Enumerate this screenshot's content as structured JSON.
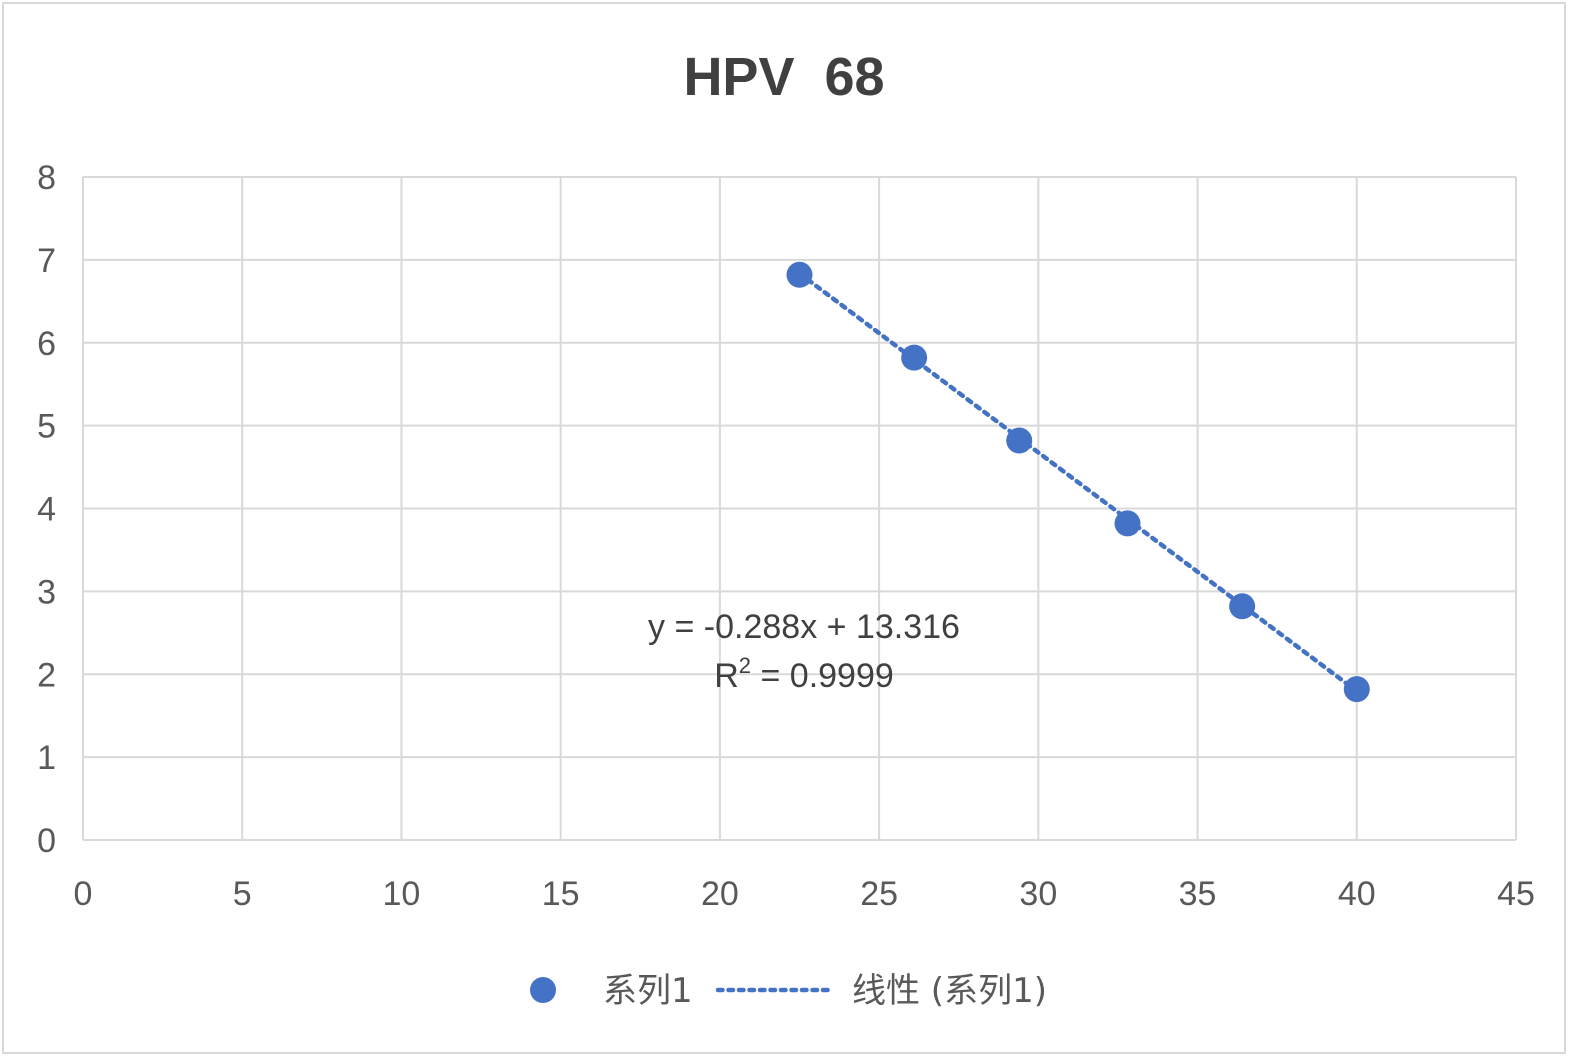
{
  "chart_data": {
    "type": "scatter",
    "title": "HPV  68",
    "xlabel": "",
    "ylabel": "",
    "xlim": [
      0,
      45
    ],
    "ylim": [
      0,
      8
    ],
    "x_ticks": [
      "0",
      "5",
      "10",
      "15",
      "20",
      "25",
      "30",
      "35",
      "40",
      "45"
    ],
    "y_ticks": [
      "0",
      "1",
      "2",
      "3",
      "4",
      "5",
      "6",
      "7",
      "8"
    ],
    "grid": true,
    "legend_position": "bottom",
    "series": [
      {
        "name": "系列1",
        "color": "#4472c4",
        "x": [
          22.5,
          26.1,
          29.4,
          32.8,
          36.4,
          40.0
        ],
        "y": [
          6.82,
          5.82,
          4.82,
          3.82,
          2.82,
          1.82
        ]
      }
    ],
    "trendline": {
      "name": "线性 (系列1)",
      "type": "linear",
      "slope": -0.288,
      "intercept": 13.316,
      "x_range": [
        22.5,
        40.0
      ],
      "style": "dotted",
      "color": "#4472c4"
    },
    "annotations": {
      "equation": "y = -0.288x + 13.316",
      "r2_prefix": "R",
      "r2_sup": "2",
      "r2_value": " = 0.9999"
    }
  }
}
